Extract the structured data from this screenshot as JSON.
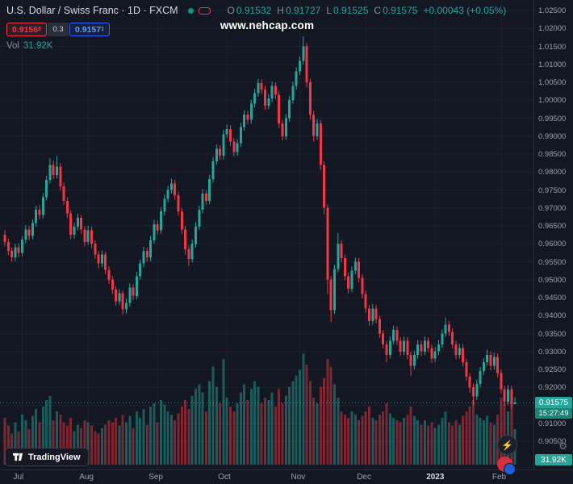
{
  "header": {
    "symbol_title": "U.S. Dollar / Swiss Franc · 1D · FXCM",
    "ohlc": {
      "o_label": "O",
      "o": "0.91532",
      "h_label": "H",
      "h": "0.91727",
      "l_label": "L",
      "l": "0.91525",
      "c_label": "C",
      "c": "0.91575",
      "change": "+0.00043 (+0.05%)"
    },
    "sell_price": "0.9156",
    "sell_sup": "8",
    "spread": "0.3",
    "buy_price": "0.9157",
    "buy_sup": "1",
    "vol_label": "Vol",
    "vol_value": "31.92K"
  },
  "watermark": "www.nehcap.com",
  "footer": {
    "logo_text": "TradingView",
    "gear_icon": "⚙"
  },
  "float_buttons": {
    "bolt_icon": "⚡"
  },
  "axis_badges": {
    "last_price": "0.91575",
    "countdown": "15:27:49",
    "volume": "31.92K"
  },
  "colors": {
    "background": "#131722",
    "grid": "#1d2230",
    "up": "#26a69a",
    "down": "#f23645",
    "vol_up": "rgba(38,166,154,0.48)",
    "vol_down": "rgba(242,54,69,0.48)",
    "axis_text": "#9aa0ac"
  },
  "chart_data": {
    "type": "candlestick",
    "title": "U.S. Dollar / Swiss Franc",
    "symbol": "USDCHF",
    "timeframe": "1D",
    "exchange": "FXCM",
    "ylim": [
      0.905,
      1.025
    ],
    "grid": true,
    "last_close": 0.91575,
    "price_axis": {
      "labels": [
        "1.02500",
        "1.02000",
        "1.01500",
        "1.01000",
        "1.00500",
        "1.00000",
        "0.99500",
        "0.99000",
        "0.98500",
        "0.98000",
        "0.97500",
        "0.97000",
        "0.96500",
        "0.96000",
        "0.95500",
        "0.95000",
        "0.94500",
        "0.94000",
        "0.93500",
        "0.93000",
        "0.92500",
        "0.92000",
        "0.91500",
        "0.91000",
        "0.90500"
      ]
    },
    "time_axis": {
      "months": [
        {
          "label": "Jul",
          "index": 5
        },
        {
          "label": "Aug",
          "index": 24
        },
        {
          "label": "Sep",
          "index": 44
        },
        {
          "label": "Oct",
          "index": 64
        },
        {
          "label": "Nov",
          "index": 85
        },
        {
          "label": "Dec",
          "index": 104
        },
        {
          "label": "2023",
          "index": 124
        },
        {
          "label": "Feb",
          "index": 143
        }
      ]
    },
    "candles": [
      [
        0.9625,
        0.9638,
        0.9593,
        0.9605
      ],
      [
        0.9605,
        0.9615,
        0.9568,
        0.958
      ],
      [
        0.958,
        0.959,
        0.955,
        0.9562
      ],
      [
        0.9562,
        0.96,
        0.9552,
        0.959
      ],
      [
        0.959,
        0.9602,
        0.9563,
        0.9575
      ],
      [
        0.9575,
        0.9622,
        0.9565,
        0.9612
      ],
      [
        0.9612,
        0.9652,
        0.9602,
        0.964
      ],
      [
        0.964,
        0.965,
        0.961,
        0.9622
      ],
      [
        0.9622,
        0.9668,
        0.9612,
        0.9658
      ],
      [
        0.9658,
        0.9706,
        0.9648,
        0.9695
      ],
      [
        0.9695,
        0.9708,
        0.9668,
        0.968
      ],
      [
        0.968,
        0.9742,
        0.967,
        0.973
      ],
      [
        0.973,
        0.979,
        0.972,
        0.9778
      ],
      [
        0.9778,
        0.9838,
        0.9768,
        0.982
      ],
      [
        0.982,
        0.9832,
        0.978,
        0.9792
      ],
      [
        0.9792,
        0.9845,
        0.9782,
        0.9815
      ],
      [
        0.9815,
        0.9825,
        0.9748,
        0.976
      ],
      [
        0.976,
        0.977,
        0.9708,
        0.972
      ],
      [
        0.972,
        0.973,
        0.9672,
        0.9685
      ],
      [
        0.9685,
        0.9693,
        0.9612,
        0.9625
      ],
      [
        0.9625,
        0.9658,
        0.9615,
        0.9648
      ],
      [
        0.9648,
        0.9684,
        0.9638,
        0.9672
      ],
      [
        0.9672,
        0.968,
        0.9628,
        0.964
      ],
      [
        0.964,
        0.965,
        0.9593,
        0.9605
      ],
      [
        0.9605,
        0.965,
        0.9597,
        0.9638
      ],
      [
        0.9638,
        0.9648,
        0.9588,
        0.96
      ],
      [
        0.96,
        0.961,
        0.9558,
        0.957
      ],
      [
        0.957,
        0.958,
        0.9532,
        0.9545
      ],
      [
        0.9545,
        0.9582,
        0.9535,
        0.957
      ],
      [
        0.957,
        0.9578,
        0.9515,
        0.9528
      ],
      [
        0.9528,
        0.9538,
        0.9488,
        0.95
      ],
      [
        0.95,
        0.951,
        0.946,
        0.9472
      ],
      [
        0.9472,
        0.9482,
        0.9428,
        0.944
      ],
      [
        0.944,
        0.9474,
        0.943,
        0.9462
      ],
      [
        0.9462,
        0.947,
        0.9403,
        0.9418
      ],
      [
        0.9418,
        0.9447,
        0.9406,
        0.9435
      ],
      [
        0.9435,
        0.949,
        0.9425,
        0.9478
      ],
      [
        0.9478,
        0.9488,
        0.9443,
        0.9455
      ],
      [
        0.9455,
        0.9522,
        0.9445,
        0.951
      ],
      [
        0.951,
        0.9557,
        0.95,
        0.9545
      ],
      [
        0.9545,
        0.9592,
        0.9535,
        0.958
      ],
      [
        0.958,
        0.959,
        0.955,
        0.9562
      ],
      [
        0.9562,
        0.9622,
        0.9552,
        0.961
      ],
      [
        0.961,
        0.9667,
        0.96,
        0.9655
      ],
      [
        0.9655,
        0.9665,
        0.9626,
        0.9638
      ],
      [
        0.9638,
        0.9702,
        0.9628,
        0.969
      ],
      [
        0.969,
        0.9737,
        0.968,
        0.9725
      ],
      [
        0.9725,
        0.9762,
        0.9715,
        0.975
      ],
      [
        0.975,
        0.9782,
        0.974,
        0.9768
      ],
      [
        0.9768,
        0.9778,
        0.9723,
        0.9735
      ],
      [
        0.9735,
        0.9745,
        0.9678,
        0.969
      ],
      [
        0.969,
        0.97,
        0.9628,
        0.964
      ],
      [
        0.964,
        0.965,
        0.957,
        0.9585
      ],
      [
        0.9585,
        0.9595,
        0.9537,
        0.9558
      ],
      [
        0.9558,
        0.9612,
        0.9548,
        0.96
      ],
      [
        0.96,
        0.966,
        0.959,
        0.9648
      ],
      [
        0.9648,
        0.9707,
        0.9638,
        0.9695
      ],
      [
        0.9695,
        0.9752,
        0.9685,
        0.974
      ],
      [
        0.974,
        0.975,
        0.9708,
        0.972
      ],
      [
        0.972,
        0.9792,
        0.971,
        0.978
      ],
      [
        0.978,
        0.9842,
        0.977,
        0.983
      ],
      [
        0.983,
        0.9877,
        0.982,
        0.9865
      ],
      [
        0.9865,
        0.9875,
        0.9833,
        0.9845
      ],
      [
        0.9845,
        0.9917,
        0.9835,
        0.9905
      ],
      [
        0.9905,
        0.9932,
        0.9895,
        0.992
      ],
      [
        0.992,
        0.993,
        0.9873,
        0.9885
      ],
      [
        0.9885,
        0.9895,
        0.9843,
        0.9855
      ],
      [
        0.9855,
        0.9892,
        0.9845,
        0.988
      ],
      [
        0.988,
        0.9937,
        0.987,
        0.9925
      ],
      [
        0.9925,
        0.9972,
        0.9915,
        0.996
      ],
      [
        0.996,
        0.997,
        0.9933,
        0.9945
      ],
      [
        0.9945,
        1.0002,
        0.9935,
        0.999
      ],
      [
        0.999,
        1.0032,
        0.998,
        1.002
      ],
      [
        1.002,
        1.006,
        1.001,
        1.0048
      ],
      [
        1.0048,
        1.0058,
        1.0018,
        1.003
      ],
      [
        1.003,
        1.004,
        0.9973,
        0.9985
      ],
      [
        0.9985,
        1.0017,
        0.9975,
        1.0005
      ],
      [
        1.0005,
        1.0052,
        0.9995,
        1.004
      ],
      [
        1.004,
        1.005,
        1.0003,
        1.0015
      ],
      [
        1.0015,
        1.0025,
        0.9923,
        0.9935
      ],
      [
        0.9935,
        0.9945,
        0.9888,
        0.99
      ],
      [
        0.99,
        0.9962,
        0.989,
        0.995
      ],
      [
        0.995,
        1.0012,
        0.994,
        1.0
      ],
      [
        1.0,
        1.0052,
        0.999,
        1.004
      ],
      [
        1.004,
        1.0092,
        1.003,
        1.008
      ],
      [
        1.008,
        1.0122,
        1.007,
        1.011
      ],
      [
        1.011,
        1.0178,
        1.01,
        1.015
      ],
      [
        1.015,
        1.016,
        1.0035,
        1.005
      ],
      [
        1.005,
        1.006,
        0.9945,
        0.996
      ],
      [
        0.996,
        0.997,
        0.9885,
        0.99
      ],
      [
        0.99,
        0.9947,
        0.989,
        0.9935
      ],
      [
        0.9935,
        0.9945,
        0.9805,
        0.982
      ],
      [
        0.982,
        0.983,
        0.9682,
        0.97
      ],
      [
        0.97,
        0.971,
        0.946,
        0.95
      ],
      [
        0.95,
        0.951,
        0.9382,
        0.9415
      ],
      [
        0.9415,
        0.9542,
        0.9405,
        0.953
      ],
      [
        0.953,
        0.963,
        0.952,
        0.96
      ],
      [
        0.96,
        0.961,
        0.9548,
        0.956
      ],
      [
        0.956,
        0.957,
        0.9498,
        0.951
      ],
      [
        0.951,
        0.952,
        0.9462,
        0.9475
      ],
      [
        0.9475,
        0.9537,
        0.9465,
        0.9525
      ],
      [
        0.9525,
        0.9562,
        0.9515,
        0.955
      ],
      [
        0.955,
        0.956,
        0.9493,
        0.9505
      ],
      [
        0.9505,
        0.9515,
        0.9448,
        0.946
      ],
      [
        0.946,
        0.947,
        0.9408,
        0.942
      ],
      [
        0.942,
        0.943,
        0.9372,
        0.9385
      ],
      [
        0.9385,
        0.9432,
        0.9375,
        0.942
      ],
      [
        0.942,
        0.943,
        0.9378,
        0.939
      ],
      [
        0.939,
        0.94,
        0.9338,
        0.935
      ],
      [
        0.935,
        0.936,
        0.9308,
        0.932
      ],
      [
        0.932,
        0.933,
        0.927,
        0.929
      ],
      [
        0.929,
        0.9342,
        0.928,
        0.933
      ],
      [
        0.933,
        0.9372,
        0.932,
        0.936
      ],
      [
        0.936,
        0.937,
        0.9318,
        0.933
      ],
      [
        0.933,
        0.934,
        0.9288,
        0.93
      ],
      [
        0.93,
        0.9342,
        0.929,
        0.933
      ],
      [
        0.933,
        0.934,
        0.9278,
        0.929
      ],
      [
        0.929,
        0.93,
        0.9232,
        0.926
      ],
      [
        0.926,
        0.9302,
        0.925,
        0.929
      ],
      [
        0.929,
        0.9332,
        0.928,
        0.932
      ],
      [
        0.932,
        0.933,
        0.9288,
        0.93
      ],
      [
        0.93,
        0.9342,
        0.929,
        0.933
      ],
      [
        0.933,
        0.934,
        0.9298,
        0.931
      ],
      [
        0.931,
        0.932,
        0.9268,
        0.928
      ],
      [
        0.928,
        0.9312,
        0.927,
        0.93
      ],
      [
        0.93,
        0.9332,
        0.929,
        0.932
      ],
      [
        0.932,
        0.9362,
        0.931,
        0.935
      ],
      [
        0.935,
        0.9395,
        0.934,
        0.9375
      ],
      [
        0.9375,
        0.9385,
        0.9343,
        0.9355
      ],
      [
        0.9355,
        0.9365,
        0.9308,
        0.932
      ],
      [
        0.932,
        0.933,
        0.9278,
        0.929
      ],
      [
        0.929,
        0.9322,
        0.928,
        0.931
      ],
      [
        0.931,
        0.932,
        0.9258,
        0.927
      ],
      [
        0.927,
        0.928,
        0.9218,
        0.923
      ],
      [
        0.923,
        0.924,
        0.9185,
        0.92
      ],
      [
        0.92,
        0.921,
        0.915,
        0.9175
      ],
      [
        0.9175,
        0.9222,
        0.9165,
        0.921
      ],
      [
        0.921,
        0.9257,
        0.92,
        0.9245
      ],
      [
        0.9245,
        0.9282,
        0.9235,
        0.927
      ],
      [
        0.927,
        0.9305,
        0.926,
        0.929
      ],
      [
        0.929,
        0.93,
        0.9248,
        0.926
      ],
      [
        0.926,
        0.9297,
        0.925,
        0.9285
      ],
      [
        0.9285,
        0.9295,
        0.9228,
        0.924
      ],
      [
        0.924,
        0.925,
        0.9183,
        0.9195
      ],
      [
        0.9195,
        0.9205,
        0.9148,
        0.916
      ],
      [
        0.916,
        0.9207,
        0.915,
        0.9195
      ],
      [
        0.9195,
        0.9205,
        0.914,
        0.9153
      ],
      [
        0.91532,
        0.91727,
        0.91525,
        0.91575
      ]
    ],
    "volumes": [
      42,
      35,
      28,
      38,
      30,
      45,
      40,
      32,
      44,
      50,
      38,
      52,
      58,
      62,
      40,
      48,
      45,
      38,
      35,
      42,
      30,
      36,
      33,
      40,
      38,
      35,
      30,
      28,
      33,
      36,
      40,
      38,
      42,
      35,
      45,
      38,
      44,
      33,
      48,
      42,
      50,
      36,
      52,
      55,
      38,
      58,
      54,
      48,
      45,
      40,
      46,
      52,
      58,
      50,
      62,
      68,
      72,
      65,
      48,
      75,
      88,
      70,
      55,
      95,
      60,
      52,
      48,
      55,
      65,
      72,
      58,
      68,
      75,
      70,
      55,
      60,
      58,
      65,
      52,
      68,
      55,
      62,
      70,
      75,
      80,
      85,
      100,
      90,
      75,
      60,
      55,
      70,
      78,
      95,
      88,
      72,
      60,
      48,
      45,
      42,
      48,
      45,
      40,
      44,
      48,
      52,
      42,
      40,
      45,
      48,
      55,
      46,
      42,
      40,
      38,
      42,
      45,
      52,
      44,
      40,
      36,
      40,
      35,
      38,
      33,
      36,
      42,
      48,
      38,
      35,
      40,
      36,
      44,
      48,
      52,
      58,
      45,
      42,
      40,
      44,
      38,
      36,
      45,
      60,
      55,
      48,
      65,
      31.92
    ]
  }
}
